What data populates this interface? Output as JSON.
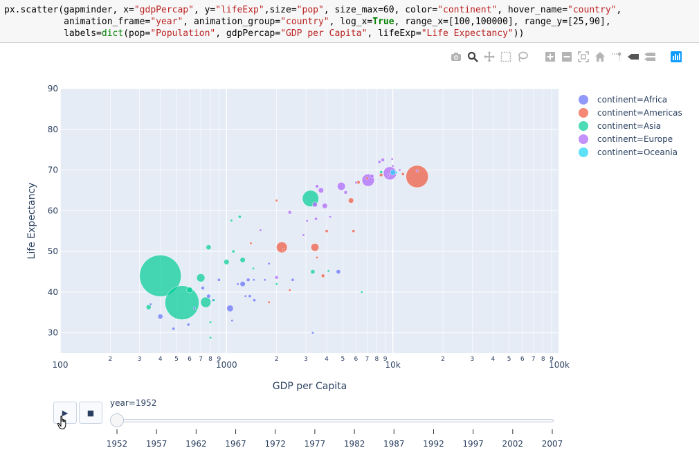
{
  "code": {
    "line1": {
      "a": "px.scatter(gapminder, x=",
      "s1": "\"gdpPercap\"",
      "b": ", y=",
      "s2": "\"lifeExp\"",
      "c": ",size=",
      "s3": "\"pop\"",
      "d": ", size_max=60, color=",
      "s4": "\"continent\"",
      "e": ", hover_name=",
      "s5": "\"country\"",
      "f": ","
    },
    "line2": {
      "a": "           animation_frame=",
      "s1": "\"year\"",
      "b": ", animation_group=",
      "s2": "\"country\"",
      "c": ", log_x=",
      "k1": "True",
      "d": ", range_x=[100,100000], range_y=[25,90],"
    },
    "line3": {
      "a": "           labels=",
      "f1": "dict",
      "b": "(pop=",
      "s1": "\"Population\"",
      "c": ", gdpPercap=",
      "s2": "\"GDP per Capita\"",
      "d": ", lifeExp=",
      "s3": "\"Life Expectancy\"",
      "e": "))"
    }
  },
  "modebar": {
    "icons": [
      "camera-icon",
      "zoom-icon",
      "pan-icon",
      "box-select-icon",
      "lasso-icon",
      "zoom-in-icon",
      "zoom-out-icon",
      "autoscale-icon",
      "reset-axes-icon",
      "spike-lines-icon",
      "hover-closest-icon",
      "hover-compare-icon",
      "plotly-logo-icon"
    ]
  },
  "colors": {
    "Africa": "#636efa",
    "Americas": "#EF553B",
    "Asia": "#00cc96",
    "Europe": "#ab63fa",
    "Oceania": "#19d3f3",
    "plot_bg": "#e5ecf6",
    "grid": "#ffffff",
    "axis_text": "#2a3f5f",
    "modebar_active": "#119dff",
    "modebar_idle": "#b4b4b4"
  },
  "chart_data": {
    "type": "scatter",
    "xlabel": "GDP per Capita",
    "ylabel": "Life Expectancy",
    "xscale": "log",
    "xlim": [
      100,
      100000
    ],
    "ylim": [
      25,
      90
    ],
    "x_major_ticks": [
      {
        "v": 100,
        "label": "100"
      },
      {
        "v": 1000,
        "label": "1000"
      },
      {
        "v": 10000,
        "label": "10k"
      },
      {
        "v": 100000,
        "label": "100k"
      }
    ],
    "x_minor_ticks": [
      {
        "v": 200,
        "label": "2"
      },
      {
        "v": 300,
        "label": "3"
      },
      {
        "v": 400,
        "label": "4"
      },
      {
        "v": 500,
        "label": "5"
      },
      {
        "v": 600,
        "label": "6"
      },
      {
        "v": 700,
        "label": "7"
      },
      {
        "v": 800,
        "label": "8"
      },
      {
        "v": 900,
        "label": "9"
      },
      {
        "v": 2000,
        "label": "2"
      },
      {
        "v": 3000,
        "label": "3"
      },
      {
        "v": 4000,
        "label": "4"
      },
      {
        "v": 5000,
        "label": "5"
      },
      {
        "v": 6000,
        "label": "6"
      },
      {
        "v": 7000,
        "label": "7"
      },
      {
        "v": 8000,
        "label": "8"
      },
      {
        "v": 9000,
        "label": "9"
      },
      {
        "v": 20000,
        "label": "2"
      },
      {
        "v": 30000,
        "label": "3"
      },
      {
        "v": 40000,
        "label": "4"
      },
      {
        "v": 50000,
        "label": "5"
      },
      {
        "v": 60000,
        "label": "6"
      },
      {
        "v": 70000,
        "label": "7"
      },
      {
        "v": 80000,
        "label": "8"
      },
      {
        "v": 90000,
        "label": "9"
      }
    ],
    "y_ticks": [
      30,
      40,
      50,
      60,
      70,
      80,
      90
    ],
    "grid": true,
    "legend_position": "top-right",
    "size_max": 60,
    "series": [
      {
        "name": "continent=Africa",
        "color": "#636efa",
        "points": [
          {
            "x": 400,
            "y": 34,
            "pop": 8
          },
          {
            "x": 480,
            "y": 31,
            "pop": 3
          },
          {
            "x": 590,
            "y": 32,
            "pop": 3
          },
          {
            "x": 720,
            "y": 41,
            "pop": 4
          },
          {
            "x": 780,
            "y": 39,
            "pop": 5
          },
          {
            "x": 900,
            "y": 43,
            "pop": 3
          },
          {
            "x": 1050,
            "y": 36,
            "pop": 14
          },
          {
            "x": 1080,
            "y": 33,
            "pop": 2
          },
          {
            "x": 1170,
            "y": 42,
            "pop": 2
          },
          {
            "x": 1250,
            "y": 42,
            "pop": 9
          },
          {
            "x": 1350,
            "y": 43,
            "pop": 4
          },
          {
            "x": 1380,
            "y": 39,
            "pop": 3
          },
          {
            "x": 1470,
            "y": 38,
            "pop": 3
          },
          {
            "x": 1460,
            "y": 43,
            "pop": 2
          },
          {
            "x": 1700,
            "y": 43,
            "pop": 2
          },
          {
            "x": 1800,
            "y": 47,
            "pop": 2
          },
          {
            "x": 2500,
            "y": 43,
            "pop": 3
          },
          {
            "x": 3300,
            "y": 30,
            "pop": 2
          },
          {
            "x": 4700,
            "y": 45,
            "pop": 6
          },
          {
            "x": 830,
            "y": 38,
            "pop": 3
          },
          {
            "x": 640,
            "y": 36,
            "pop": 2
          },
          {
            "x": 350,
            "y": 37,
            "pop": 2
          },
          {
            "x": 1300,
            "y": 39,
            "pop": 2
          }
        ]
      },
      {
        "name": "continent=Americas",
        "color": "#EF553B",
        "points": [
          {
            "x": 2000,
            "y": 62.5,
            "pop": 2
          },
          {
            "x": 2150,
            "y": 51,
            "pop": 38
          },
          {
            "x": 2200,
            "y": 50.5,
            "pop": 2
          },
          {
            "x": 3400,
            "y": 51,
            "pop": 20
          },
          {
            "x": 3500,
            "y": 48.5,
            "pop": 2
          },
          {
            "x": 3800,
            "y": 44,
            "pop": 4
          },
          {
            "x": 4000,
            "y": 55,
            "pop": 3
          },
          {
            "x": 5600,
            "y": 62.5,
            "pop": 9
          },
          {
            "x": 5800,
            "y": 55,
            "pop": 3
          },
          {
            "x": 6200,
            "y": 67,
            "pop": 4
          },
          {
            "x": 7000,
            "y": 68,
            "pop": 2
          },
          {
            "x": 8500,
            "y": 68.8,
            "pop": 4
          },
          {
            "x": 11500,
            "y": 69,
            "pop": 3
          },
          {
            "x": 13990,
            "y": 68.4,
            "pop": 160
          },
          {
            "x": 2400,
            "y": 40.5,
            "pop": 2
          },
          {
            "x": 1800,
            "y": 37.5,
            "pop": 2
          },
          {
            "x": 1400,
            "y": 52,
            "pop": 2
          }
        ]
      },
      {
        "name": "continent=Asia",
        "color": "#00cc96",
        "points": [
          {
            "x": 400,
            "y": 44,
            "pop": 556
          },
          {
            "x": 540,
            "y": 37.4,
            "pop": 372
          },
          {
            "x": 700,
            "y": 43.5,
            "pop": 22
          },
          {
            "x": 750,
            "y": 37.5,
            "pop": 35
          },
          {
            "x": 600,
            "y": 40.5,
            "pop": 11
          },
          {
            "x": 780,
            "y": 51,
            "pop": 8
          },
          {
            "x": 340,
            "y": 36.3,
            "pop": 8
          },
          {
            "x": 1070,
            "y": 57.6,
            "pop": 2
          },
          {
            "x": 1200,
            "y": 58.5,
            "pop": 3
          },
          {
            "x": 1000,
            "y": 47.4,
            "pop": 9
          },
          {
            "x": 1100,
            "y": 50,
            "pop": 3
          },
          {
            "x": 1250,
            "y": 47.9,
            "pop": 9
          },
          {
            "x": 1450,
            "y": 45.8,
            "pop": 2
          },
          {
            "x": 3200,
            "y": 63,
            "pop": 86
          },
          {
            "x": 3300,
            "y": 45,
            "pop": 6
          },
          {
            "x": 4100,
            "y": 45.2,
            "pop": 2
          },
          {
            "x": 6500,
            "y": 40,
            "pop": 2
          },
          {
            "x": 800,
            "y": 28.8,
            "pop": 2
          },
          {
            "x": 800,
            "y": 32.6,
            "pop": 2
          },
          {
            "x": 2000,
            "y": 42,
            "pop": 2
          },
          {
            "x": 8500,
            "y": 69.5,
            "pop": 3
          },
          {
            "x": 840,
            "y": 38,
            "pop": 2
          }
        ]
      },
      {
        "name": "continent=Europe",
        "color": "#ab63fa",
        "points": [
          {
            "x": 1600,
            "y": 55.2,
            "pop": 2
          },
          {
            "x": 2000,
            "y": 43.6,
            "pop": 4
          },
          {
            "x": 2400,
            "y": 59.6,
            "pop": 4
          },
          {
            "x": 3050,
            "y": 57.5,
            "pop": 2
          },
          {
            "x": 3400,
            "y": 61.5,
            "pop": 8
          },
          {
            "x": 3500,
            "y": 66,
            "pop": 4
          },
          {
            "x": 3700,
            "y": 65,
            "pop": 9
          },
          {
            "x": 3900,
            "y": 61.2,
            "pop": 9
          },
          {
            "x": 3450,
            "y": 58,
            "pop": 3
          },
          {
            "x": 4900,
            "y": 66,
            "pop": 21
          },
          {
            "x": 5200,
            "y": 64.5,
            "pop": 4
          },
          {
            "x": 7100,
            "y": 67.5,
            "pop": 49
          },
          {
            "x": 7500,
            "y": 68.5,
            "pop": 4
          },
          {
            "x": 8300,
            "y": 72,
            "pop": 3
          },
          {
            "x": 8700,
            "y": 72.5,
            "pop": 4
          },
          {
            "x": 9600,
            "y": 69.2,
            "pop": 55
          },
          {
            "x": 10000,
            "y": 71,
            "pop": 2
          },
          {
            "x": 9900,
            "y": 72.7,
            "pop": 2
          },
          {
            "x": 14000,
            "y": 69.8,
            "pop": 2
          },
          {
            "x": 9400,
            "y": 68.8,
            "pop": 2
          },
          {
            "x": 6000,
            "y": 66.9,
            "pop": 2
          },
          {
            "x": 2900,
            "y": 54,
            "pop": 2
          },
          {
            "x": 11000,
            "y": 70,
            "pop": 2
          },
          {
            "x": 4200,
            "y": 58.5,
            "pop": 2
          }
        ]
      },
      {
        "name": "continent=Oceania",
        "color": "#19d3f3",
        "points": [
          {
            "x": 10000,
            "y": 69.4,
            "pop": 9
          },
          {
            "x": 10500,
            "y": 69.4,
            "pop": 2
          }
        ]
      }
    ]
  },
  "slider": {
    "current_label": "year=1952",
    "steps": [
      "1952",
      "1957",
      "1962",
      "1967",
      "1972",
      "1977",
      "1982",
      "1987",
      "1992",
      "1997",
      "2002",
      "2007"
    ]
  }
}
